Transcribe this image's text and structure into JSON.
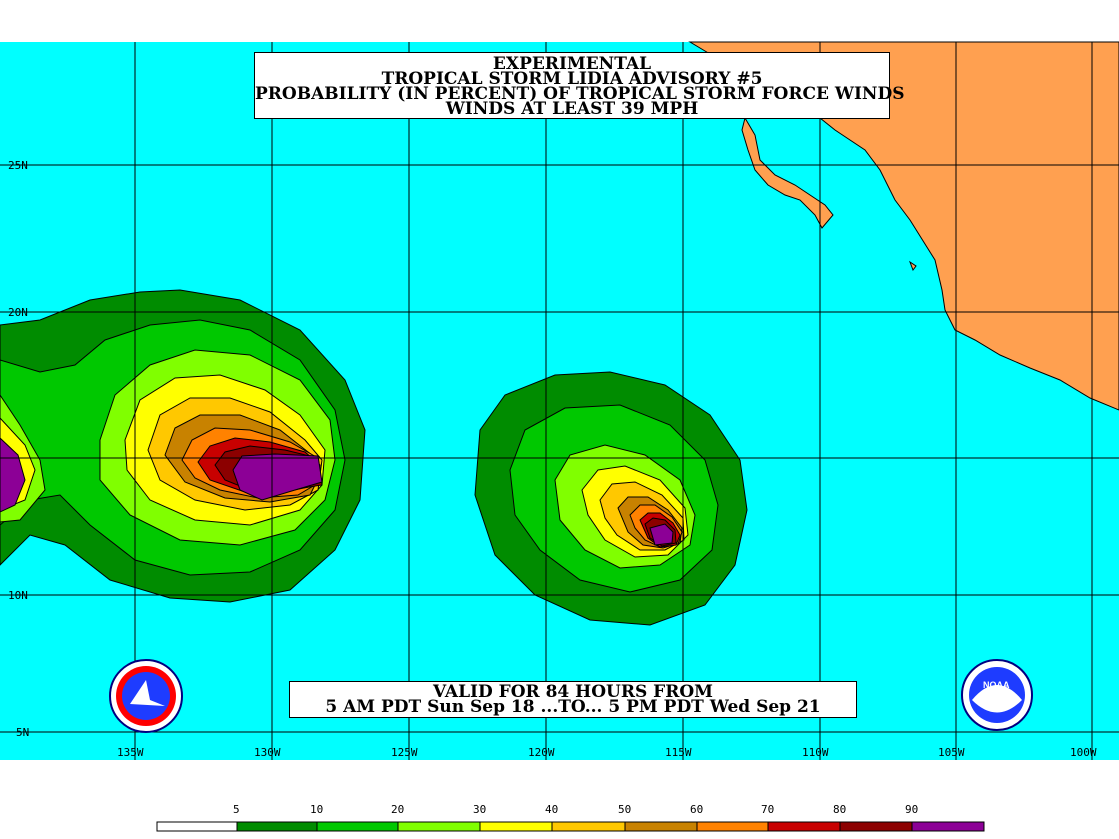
{
  "title": {
    "lines": [
      "EXPERIMENTAL",
      "TROPICAL STORM LIDIA ADVISORY #5",
      "PROBABILITY (IN PERCENT) OF TROPICAL STORM FORCE WINDS",
      "WINDS AT LEAST 39 MPH"
    ]
  },
  "valid": {
    "line1": "VALID FOR 84 HOURS FROM",
    "line2": "5 AM PDT Sun Sep 18 ...TO... 5 PM PDT Wed Sep 21"
  },
  "lat_labels": [
    "25N",
    "20N",
    "10N",
    "5N"
  ],
  "lon_labels": [
    "135W",
    "130W",
    "125W",
    "120W",
    "115W",
    "110W",
    "105W",
    "100W"
  ],
  "legend": {
    "ticks": [
      "5",
      "10",
      "20",
      "30",
      "40",
      "50",
      "60",
      "70",
      "80",
      "90"
    ],
    "colors": [
      "#ffffff",
      "#008c00",
      "#00c800",
      "#80ff00",
      "#ffff00",
      "#ffc800",
      "#c88200",
      "#ff8200",
      "#c80000",
      "#8c0000",
      "#8c0096"
    ]
  },
  "colors": {
    "ocean": "#00ffff",
    "land": "#ffa050"
  },
  "icons": {
    "nws_logo": "nws-logo-icon",
    "noaa_logo": "noaa-logo-icon"
  },
  "noaa_text": "NOAA"
}
